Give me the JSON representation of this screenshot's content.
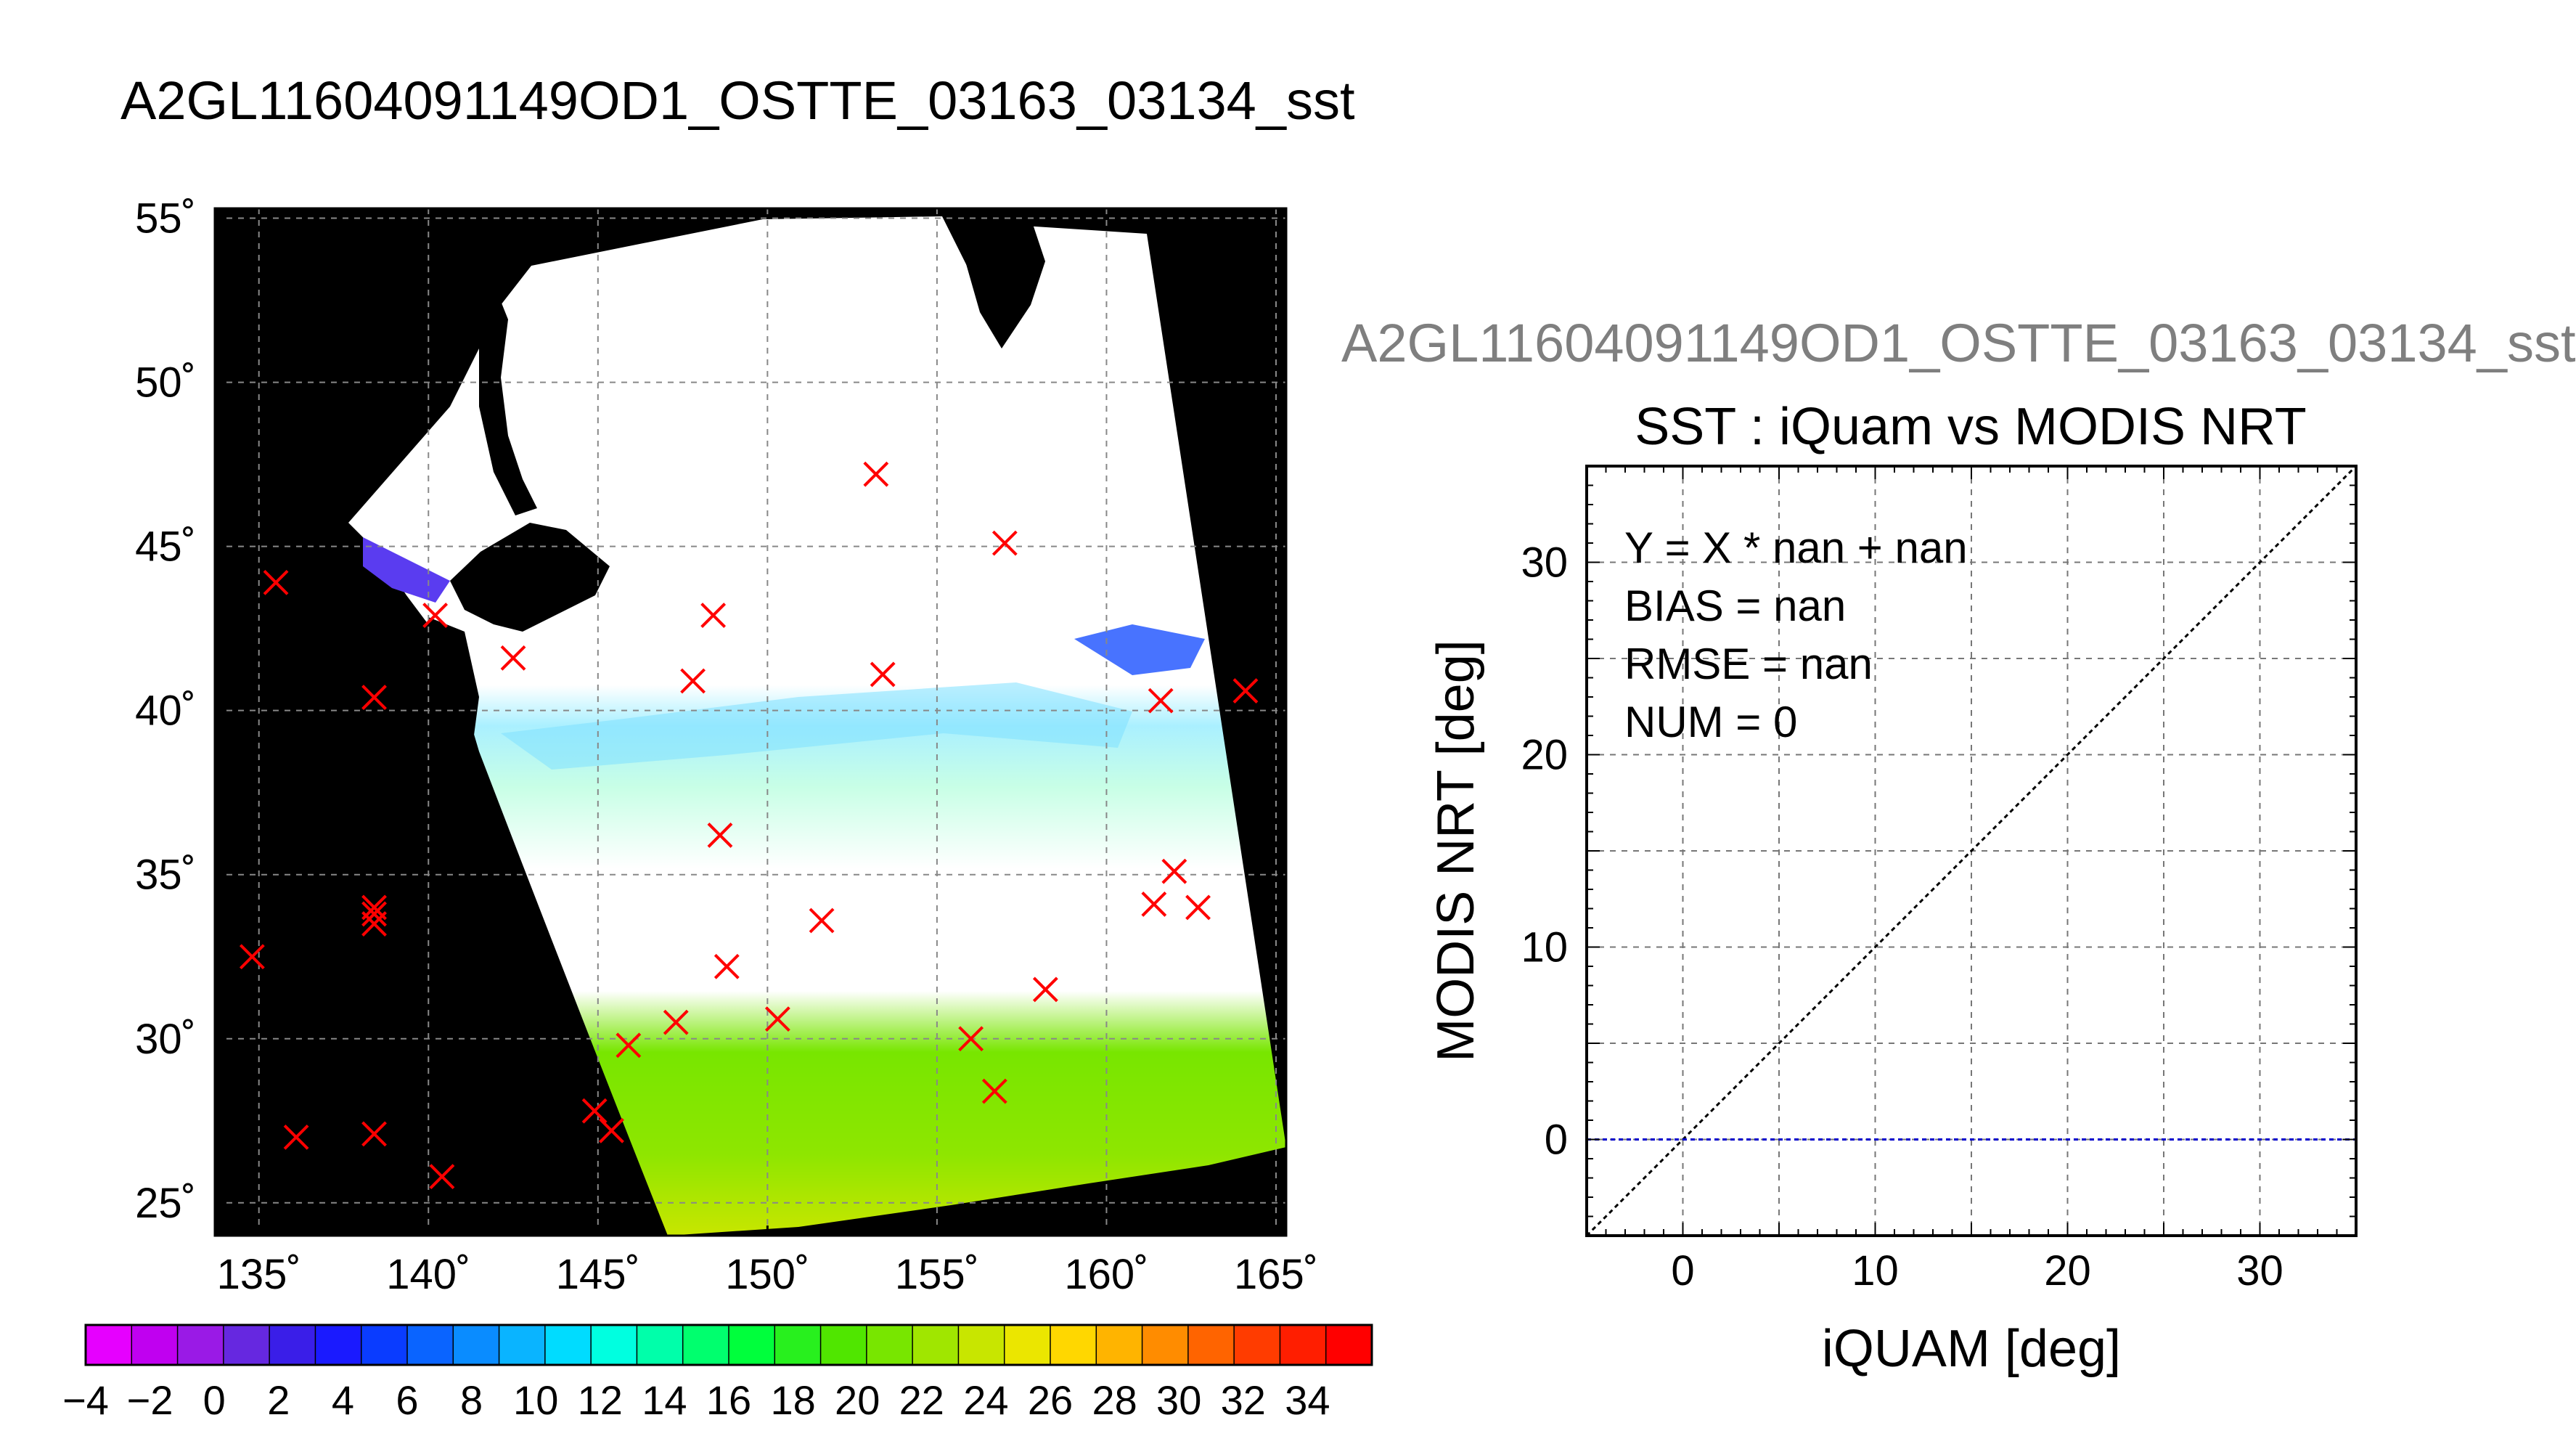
{
  "map": {
    "title": "A2GL11604091149OD1_OSTTE_03163_03134_sst",
    "lat_ticks": [
      "55˚",
      "50˚",
      "45˚",
      "40˚",
      "35˚",
      "30˚",
      "25˚"
    ],
    "lon_ticks": [
      "135˚",
      "140˚",
      "145˚",
      "150˚",
      "155˚",
      "160˚",
      "165˚"
    ],
    "lon_range": [
      133.7,
      165.3
    ],
    "lat_range": [
      24.0,
      55.3
    ],
    "land_color": "#000000",
    "no_data_color": "#ffffff",
    "marker_color": "#ff0000",
    "in_situ_markers": [
      [
        135.5,
        43.9
      ],
      [
        138.4,
        40.4
      ],
      [
        140.2,
        42.9
      ],
      [
        142.5,
        41.6
      ],
      [
        148.4,
        42.9
      ],
      [
        147.8,
        40.9
      ],
      [
        153.2,
        47.2
      ],
      [
        153.4,
        41.1
      ],
      [
        157.0,
        45.1
      ],
      [
        161.6,
        40.3
      ],
      [
        164.1,
        40.6
      ],
      [
        134.8,
        32.5
      ],
      [
        138.4,
        33.8
      ],
      [
        138.4,
        33.5
      ],
      [
        138.4,
        34.0
      ],
      [
        136.1,
        27.0
      ],
      [
        138.4,
        27.1
      ],
      [
        140.4,
        25.8
      ],
      [
        144.9,
        27.8
      ],
      [
        145.4,
        27.2
      ],
      [
        145.9,
        29.8
      ],
      [
        147.3,
        30.5
      ],
      [
        148.6,
        36.2
      ],
      [
        148.8,
        32.2
      ],
      [
        150.3,
        30.6
      ],
      [
        151.6,
        33.6
      ],
      [
        156.0,
        30.0
      ],
      [
        156.7,
        28.4
      ],
      [
        158.2,
        31.5
      ],
      [
        161.4,
        34.1
      ],
      [
        162.0,
        35.1
      ],
      [
        162.7,
        34.0
      ]
    ]
  },
  "colorbar": {
    "labels": [
      "−4",
      "−2",
      "0",
      "2",
      "4",
      "6",
      "8",
      "10",
      "12",
      "14",
      "16",
      "18",
      "20",
      "22",
      "24",
      "26",
      "28",
      "30",
      "32",
      "34"
    ],
    "min": -4,
    "max": 36,
    "colors": [
      "#e600ff",
      "#c000f0",
      "#9a1ae6",
      "#6628e0",
      "#3a1ee8",
      "#1a1aff",
      "#0a3cff",
      "#0a64ff",
      "#0a8cff",
      "#0ab4ff",
      "#00dcff",
      "#00ffe0",
      "#00ffaa",
      "#00ff6e",
      "#00ff3c",
      "#28f01e",
      "#50e600",
      "#78e600",
      "#a0e600",
      "#c8e600",
      "#ebe600",
      "#ffd700",
      "#ffb400",
      "#ff8c00",
      "#ff6400",
      "#ff3c00",
      "#ff1e00",
      "#ff0000"
    ]
  },
  "chart_data": {
    "type": "scatter",
    "supertitle": "A2GL11604091149OD1_OSTTE_03163_03134_sst",
    "title": "SST : iQuam vs MODIS NRT",
    "xlabel": "iQUAM [deg]",
    "ylabel": "MODIS NRT [deg]",
    "xlim": [
      -5,
      35
    ],
    "ylim": [
      -5,
      35
    ],
    "xticks": [
      0,
      10,
      20,
      30
    ],
    "yticks": [
      0,
      10,
      20,
      30
    ],
    "grid": true,
    "annotations": [
      "Y = X * nan + nan",
      "BIAS = nan",
      "RMSE = nan",
      "NUM = 0"
    ],
    "reference_lines": [
      {
        "kind": "identity",
        "color": "#000000"
      },
      {
        "kind": "horizontal",
        "y": 0,
        "color": "#0000cc"
      }
    ],
    "points": []
  }
}
